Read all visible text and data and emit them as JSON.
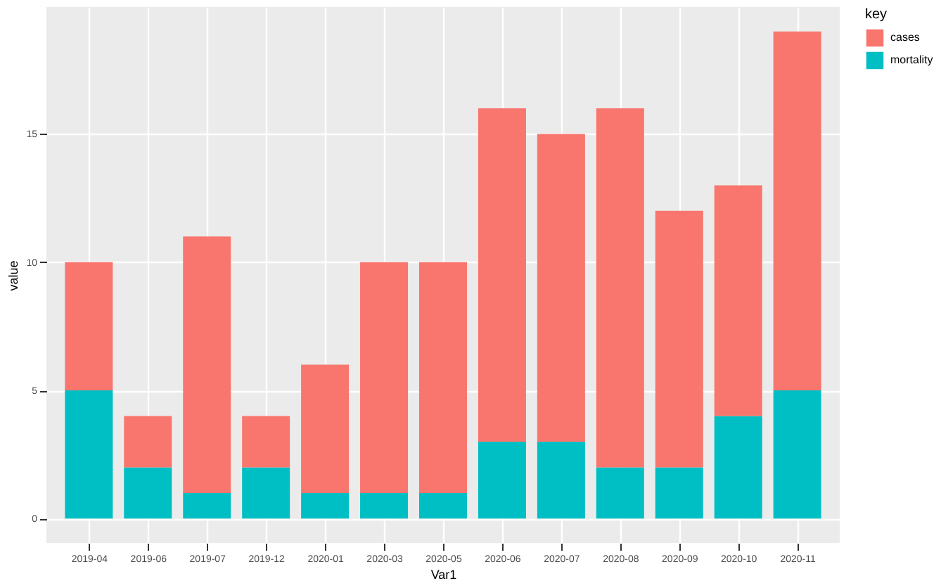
{
  "chart_data": {
    "type": "bar",
    "stacked": true,
    "xlabel": "Var1",
    "ylabel": "value",
    "legend_title": "key",
    "legend": "right",
    "categories": [
      "2019-04",
      "2019-06",
      "2019-07",
      "2019-12",
      "2020-01",
      "2020-03",
      "2020-05",
      "2020-06",
      "2020-07",
      "2020-08",
      "2020-09",
      "2020-10",
      "2020-11"
    ],
    "series": [
      {
        "name": "mortality",
        "color": "#00bfc4",
        "values": [
          5,
          2,
          1,
          2,
          1,
          1,
          1,
          3,
          3,
          2,
          2,
          4,
          5
        ]
      },
      {
        "name": "cases",
        "color": "#f8766d",
        "values": [
          5,
          2,
          10,
          2,
          5,
          9,
          9,
          13,
          12,
          14,
          10,
          9,
          14
        ]
      }
    ],
    "ylim": [
      -0.95,
      19.95
    ],
    "yticks": [
      0,
      5,
      10,
      15
    ],
    "grid": true
  }
}
